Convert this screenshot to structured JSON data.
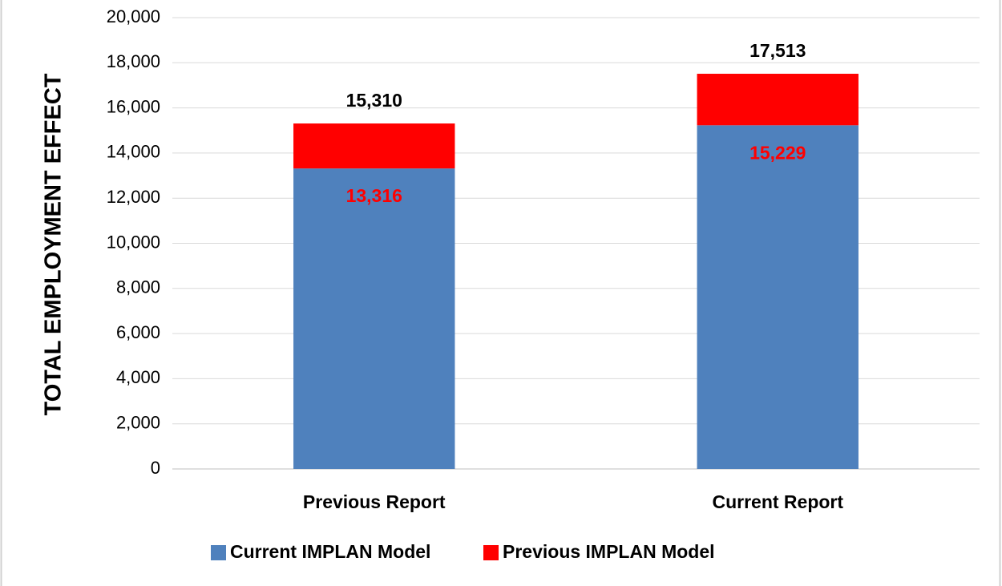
{
  "chart_data": {
    "type": "stacked_bar",
    "ylabel": "TOTAL EMPLOYMENT EFFECT",
    "categories": [
      "Previous Report",
      "Current Report"
    ],
    "series": [
      {
        "name": "Current IMPLAN Model",
        "color": "#4f81bd",
        "values": [
          13316,
          15229
        ],
        "value_labels": [
          "13,316",
          "15,229"
        ],
        "label_color": "#ff0000"
      },
      {
        "name": "Previous IMPLAN Model",
        "color": "#ff0000",
        "values": [
          1994,
          2284
        ]
      }
    ],
    "totals": [
      15310,
      17513
    ],
    "total_labels": [
      "15,310",
      "17,513"
    ],
    "ylim": [
      0,
      20000
    ],
    "yticks": [
      0,
      {
        "value": 2000,
        "label": "2,000"
      },
      {
        "value": 4000,
        "label": "4,000"
      },
      {
        "value": 6000,
        "label": "6,000"
      },
      {
        "value": 8000,
        "label": "8,000"
      },
      {
        "value": 10000,
        "label": "10,000"
      },
      {
        "value": 12000,
        "label": "12,000"
      },
      {
        "value": 14000,
        "label": "14,000"
      },
      {
        "value": 16000,
        "label": "16,000"
      },
      {
        "value": 18000,
        "label": "18,000"
      },
      {
        "value": 20000,
        "label": "20,000"
      }
    ],
    "grid": true,
    "legend": "bottom"
  }
}
